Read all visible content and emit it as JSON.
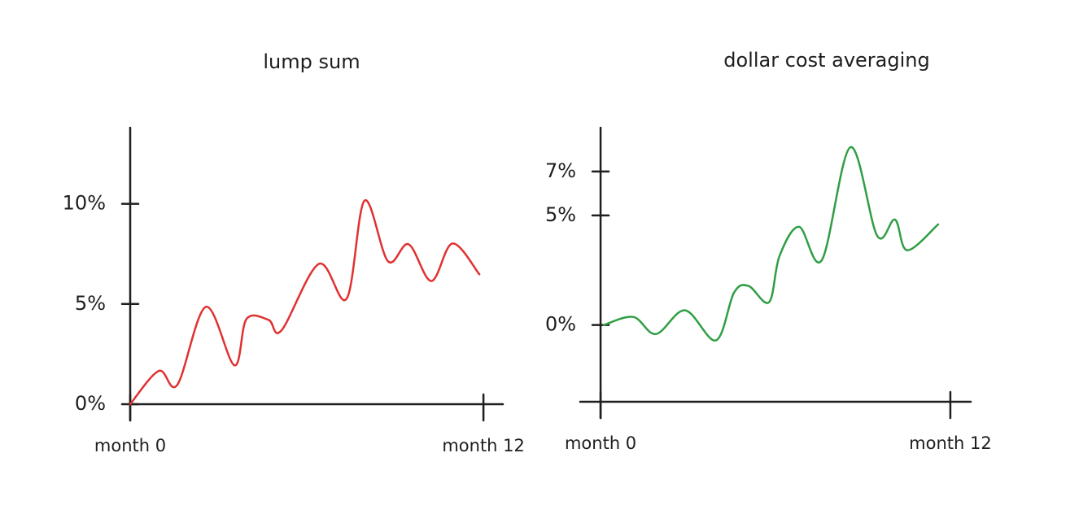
{
  "chart_data": [
    {
      "type": "line",
      "title": "lump sum",
      "x": [
        0,
        0.97,
        1.6,
        2.57,
        3.54,
        3.95,
        4.7,
        5.14,
        6.41,
        7.35,
        7.96,
        8.76,
        9.46,
        10.23,
        10.95,
        11.86
      ],
      "series": [
        {
          "color": "#e03131",
          "values": [
            0,
            1.66,
            0.97,
            4.86,
            1.94,
            4.25,
            4.21,
            3.68,
            7.0,
            5.26,
            10.16,
            7.13,
            7.98,
            6.15,
            8.02,
            6.48
          ]
        }
      ],
      "xlim": [
        0,
        12.66
      ],
      "xticks": [
        {
          "value": 0,
          "label": "month 0"
        },
        {
          "value": 12,
          "label": "month 12"
        }
      ],
      "ylim": [
        0,
        13.8
      ],
      "yticks": [
        {
          "value": 0,
          "label": "0%"
        },
        {
          "value": 5,
          "label": "5%"
        },
        {
          "value": 10,
          "label": "10%"
        }
      ]
    },
    {
      "type": "line",
      "title": "dollar cost averaging",
      "x": [
        0.11,
        1.12,
        1.9,
        2.9,
        3.96,
        4.58,
        5.08,
        5.78,
        6.14,
        6.81,
        7.59,
        8.57,
        9.49,
        10.1,
        10.52,
        11.58
      ],
      "series": [
        {
          "color": "#2f9e44",
          "values": [
            0,
            0.37,
            -0.41,
            0.67,
            -0.7,
            1.48,
            1.78,
            1.04,
            3.15,
            4.48,
            2.96,
            8.11,
            4.07,
            4.81,
            3.41,
            4.59
          ]
        }
      ],
      "xlim": [
        -0.7,
        12.7
      ],
      "xticks": [
        {
          "value": 0,
          "label": "month 0"
        },
        {
          "value": 12,
          "label": "month 12"
        }
      ],
      "ylim": [
        -3.5,
        9
      ],
      "yticks": [
        {
          "value": 0,
          "label": "0%"
        },
        {
          "value": 5,
          "label": "5%"
        },
        {
          "value": 7,
          "label": "7%"
        }
      ]
    }
  ]
}
